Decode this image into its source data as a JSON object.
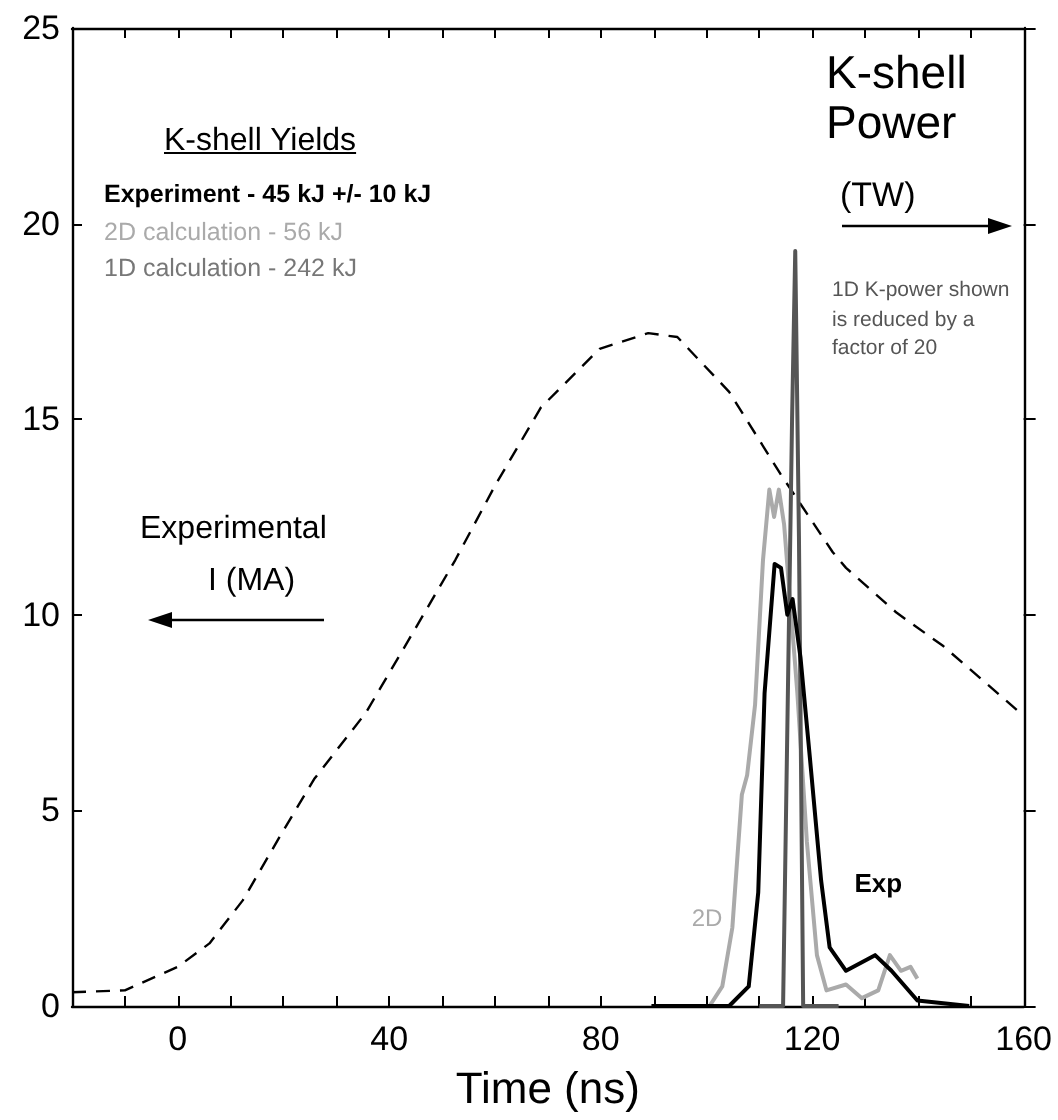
{
  "chart_data": {
    "type": "line",
    "xlabel": "Time (ns)",
    "xlim": [
      -20,
      160
    ],
    "xticks": [
      {
        "value": -10,
        "label": null
      },
      0,
      {
        "value": 10,
        "label": null
      },
      {
        "value": 20,
        "label": null
      },
      {
        "value": 30,
        "label": null
      },
      40,
      {
        "value": 50,
        "label": null
      },
      {
        "value": 60,
        "label": null
      },
      {
        "value": 70,
        "label": null
      },
      80,
      {
        "value": 90,
        "label": null
      },
      {
        "value": 100,
        "label": null
      },
      {
        "value": 110,
        "label": null
      },
      120,
      {
        "value": 130,
        "label": null
      },
      {
        "value": 140,
        "label": null
      },
      {
        "value": 150,
        "label": null
      },
      160
    ],
    "ylim": [
      0,
      25
    ],
    "yticks": [
      0,
      5,
      10,
      15,
      20,
      25
    ],
    "grid": false,
    "legend": false,
    "marker": "none",
    "annotations": [
      "K-shell Yields",
      "Experiment - 45 kJ +/- 10 kJ",
      "2D calculation -  56 kJ",
      "1D calculation - 242 kJ",
      "K-shell Power",
      "(TW)",
      "Experimental",
      "I (MA)",
      "1D K-power shown is reduced by a factor of 20"
    ],
    "series": [
      {
        "color": "#000000",
        "line_style": "dashed",
        "x": [
          -20,
          -10,
          0,
          6,
          12.3,
          19.6,
          25.8,
          35.6,
          43,
          52.5,
          60,
          68.7,
          79.8,
          89,
          94.5,
          104.3,
          114,
          123.9,
          126.4,
          136,
          144.8,
          159.3
        ],
        "values": [
          0.35,
          0.4,
          1.0,
          1.6,
          2.7,
          4.4,
          5.8,
          7.5,
          9.2,
          11.4,
          13.3,
          15.3,
          16.8,
          17.2,
          17.1,
          15.7,
          13.6,
          11.6,
          11.2,
          10.05,
          9.2,
          7.5
        ]
      },
      {
        "name": "2D",
        "color": "#aaaaaa",
        "line_style": "solid",
        "x": [
          100.6,
          103,
          104.9,
          106.7,
          107.7,
          109.2,
          110.7,
          111.9,
          112.8,
          113.7,
          114.7,
          117.2,
          119,
          120.9,
          122.7,
          126.4,
          129.4,
          132.5,
          134.7,
          136.8,
          138.6,
          139.9
        ],
        "values": [
          0,
          0.5,
          2.0,
          5.4,
          5.9,
          7.7,
          11.4,
          13.2,
          12.5,
          13.2,
          12.3,
          8,
          4.2,
          1.3,
          0.4,
          0.55,
          0.2,
          0.4,
          1.3,
          0.9,
          1.0,
          0.7
        ]
      },
      {
        "color": "#555555",
        "line_style": "solid",
        "x": [
          110,
          114.5,
          116.2,
          116.8,
          117.5,
          118.3,
          125
        ],
        "values": [
          0,
          0,
          15,
          19.3,
          12,
          0,
          0
        ]
      },
      {
        "name": "Exp",
        "color": "#000000",
        "line_style": "solid",
        "x": [
          89.6,
          104.3,
          108,
          109.8,
          111,
          112.9,
          114.1,
          115.3,
          116.3,
          117.8,
          119.6,
          121.7,
          123.3,
          126.4,
          131.9,
          135,
          139.9,
          149.7
        ],
        "values": [
          0,
          0,
          0.5,
          2.9,
          8,
          11.3,
          11.2,
          10.0,
          10.4,
          8.9,
          6.3,
          3.2,
          1.5,
          0.9,
          1.3,
          0.9,
          0.14,
          0
        ]
      }
    ]
  }
}
